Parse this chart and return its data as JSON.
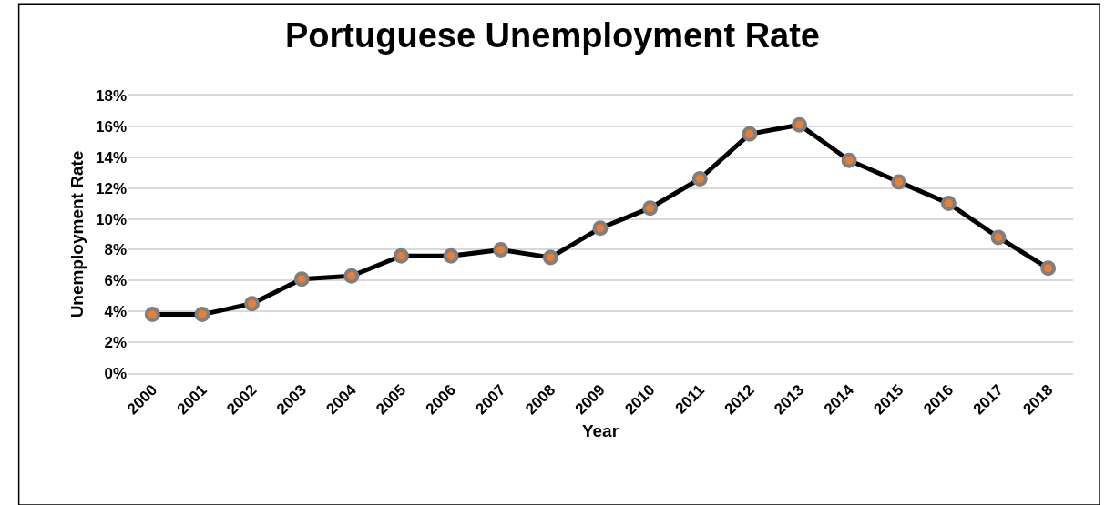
{
  "chart_data": {
    "type": "line",
    "title": "Portuguese Unemployment Rate",
    "xlabel": "Year",
    "ylabel": "Unemployment Rate",
    "categories": [
      "2000",
      "2001",
      "2002",
      "2003",
      "2004",
      "2005",
      "2006",
      "2007",
      "2008",
      "2009",
      "2010",
      "2011",
      "2012",
      "2013",
      "2014",
      "2015",
      "2016",
      "2017",
      "2018"
    ],
    "series": [
      {
        "color": "#000000",
        "values": [
          3.8,
          3.8,
          4.5,
          6.1,
          6.3,
          7.6,
          7.6,
          8.0,
          7.5,
          9.4,
          10.7,
          12.6,
          15.5,
          16.1,
          13.8,
          12.4,
          11.0,
          8.8,
          6.8
        ]
      }
    ],
    "ylim": [
      0,
      18
    ],
    "yticks": [
      {
        "value": 0,
        "label": "0%"
      },
      {
        "value": 2,
        "label": "2%"
      },
      {
        "value": 4,
        "label": "4%"
      },
      {
        "value": 6,
        "label": "6%"
      },
      {
        "value": 8,
        "label": "8%"
      },
      {
        "value": 10,
        "label": "10%"
      },
      {
        "value": 12,
        "label": "12%"
      },
      {
        "value": 14,
        "label": "14%"
      },
      {
        "value": 16,
        "label": "16%"
      },
      {
        "value": 18,
        "label": "18%"
      }
    ],
    "grid": "y",
    "marker": "circle",
    "line_style": "solid"
  }
}
